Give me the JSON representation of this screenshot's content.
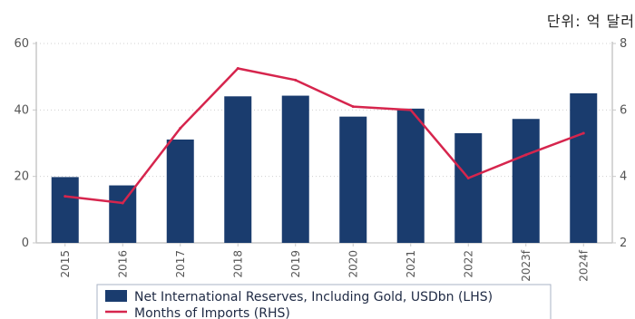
{
  "unit_label": "단위: 억 달러",
  "colors": {
    "bar": "#1a3c6e",
    "line": "#d6254d",
    "axis": "#c8c8c8",
    "grid": "#d0d0d0"
  },
  "chart_data": {
    "type": "bar",
    "categories": [
      "2015",
      "2016",
      "2017",
      "2018",
      "2019",
      "2020",
      "2021",
      "2022",
      "2023f",
      "2024f"
    ],
    "series": [
      {
        "name": "Net International Reserves, Including Gold, USDbn (LHS)",
        "type": "bar",
        "axis": "left",
        "values": [
          19.8,
          17.3,
          31.1,
          44.1,
          44.3,
          38.0,
          40.4,
          33.0,
          37.3,
          45.0
        ]
      },
      {
        "name": "Months of Imports (RHS)",
        "type": "line",
        "axis": "right",
        "values": [
          3.4,
          3.2,
          5.45,
          7.25,
          6.9,
          6.1,
          6.0,
          3.95,
          4.65,
          5.3
        ]
      }
    ],
    "ylim_left": [
      0,
      60
    ],
    "yticks_left": [
      0,
      20,
      40,
      60
    ],
    "ylim_right": [
      2,
      8
    ],
    "yticks_right": [
      2,
      4,
      6,
      8
    ],
    "grid": true,
    "legend_position": "bottom"
  }
}
